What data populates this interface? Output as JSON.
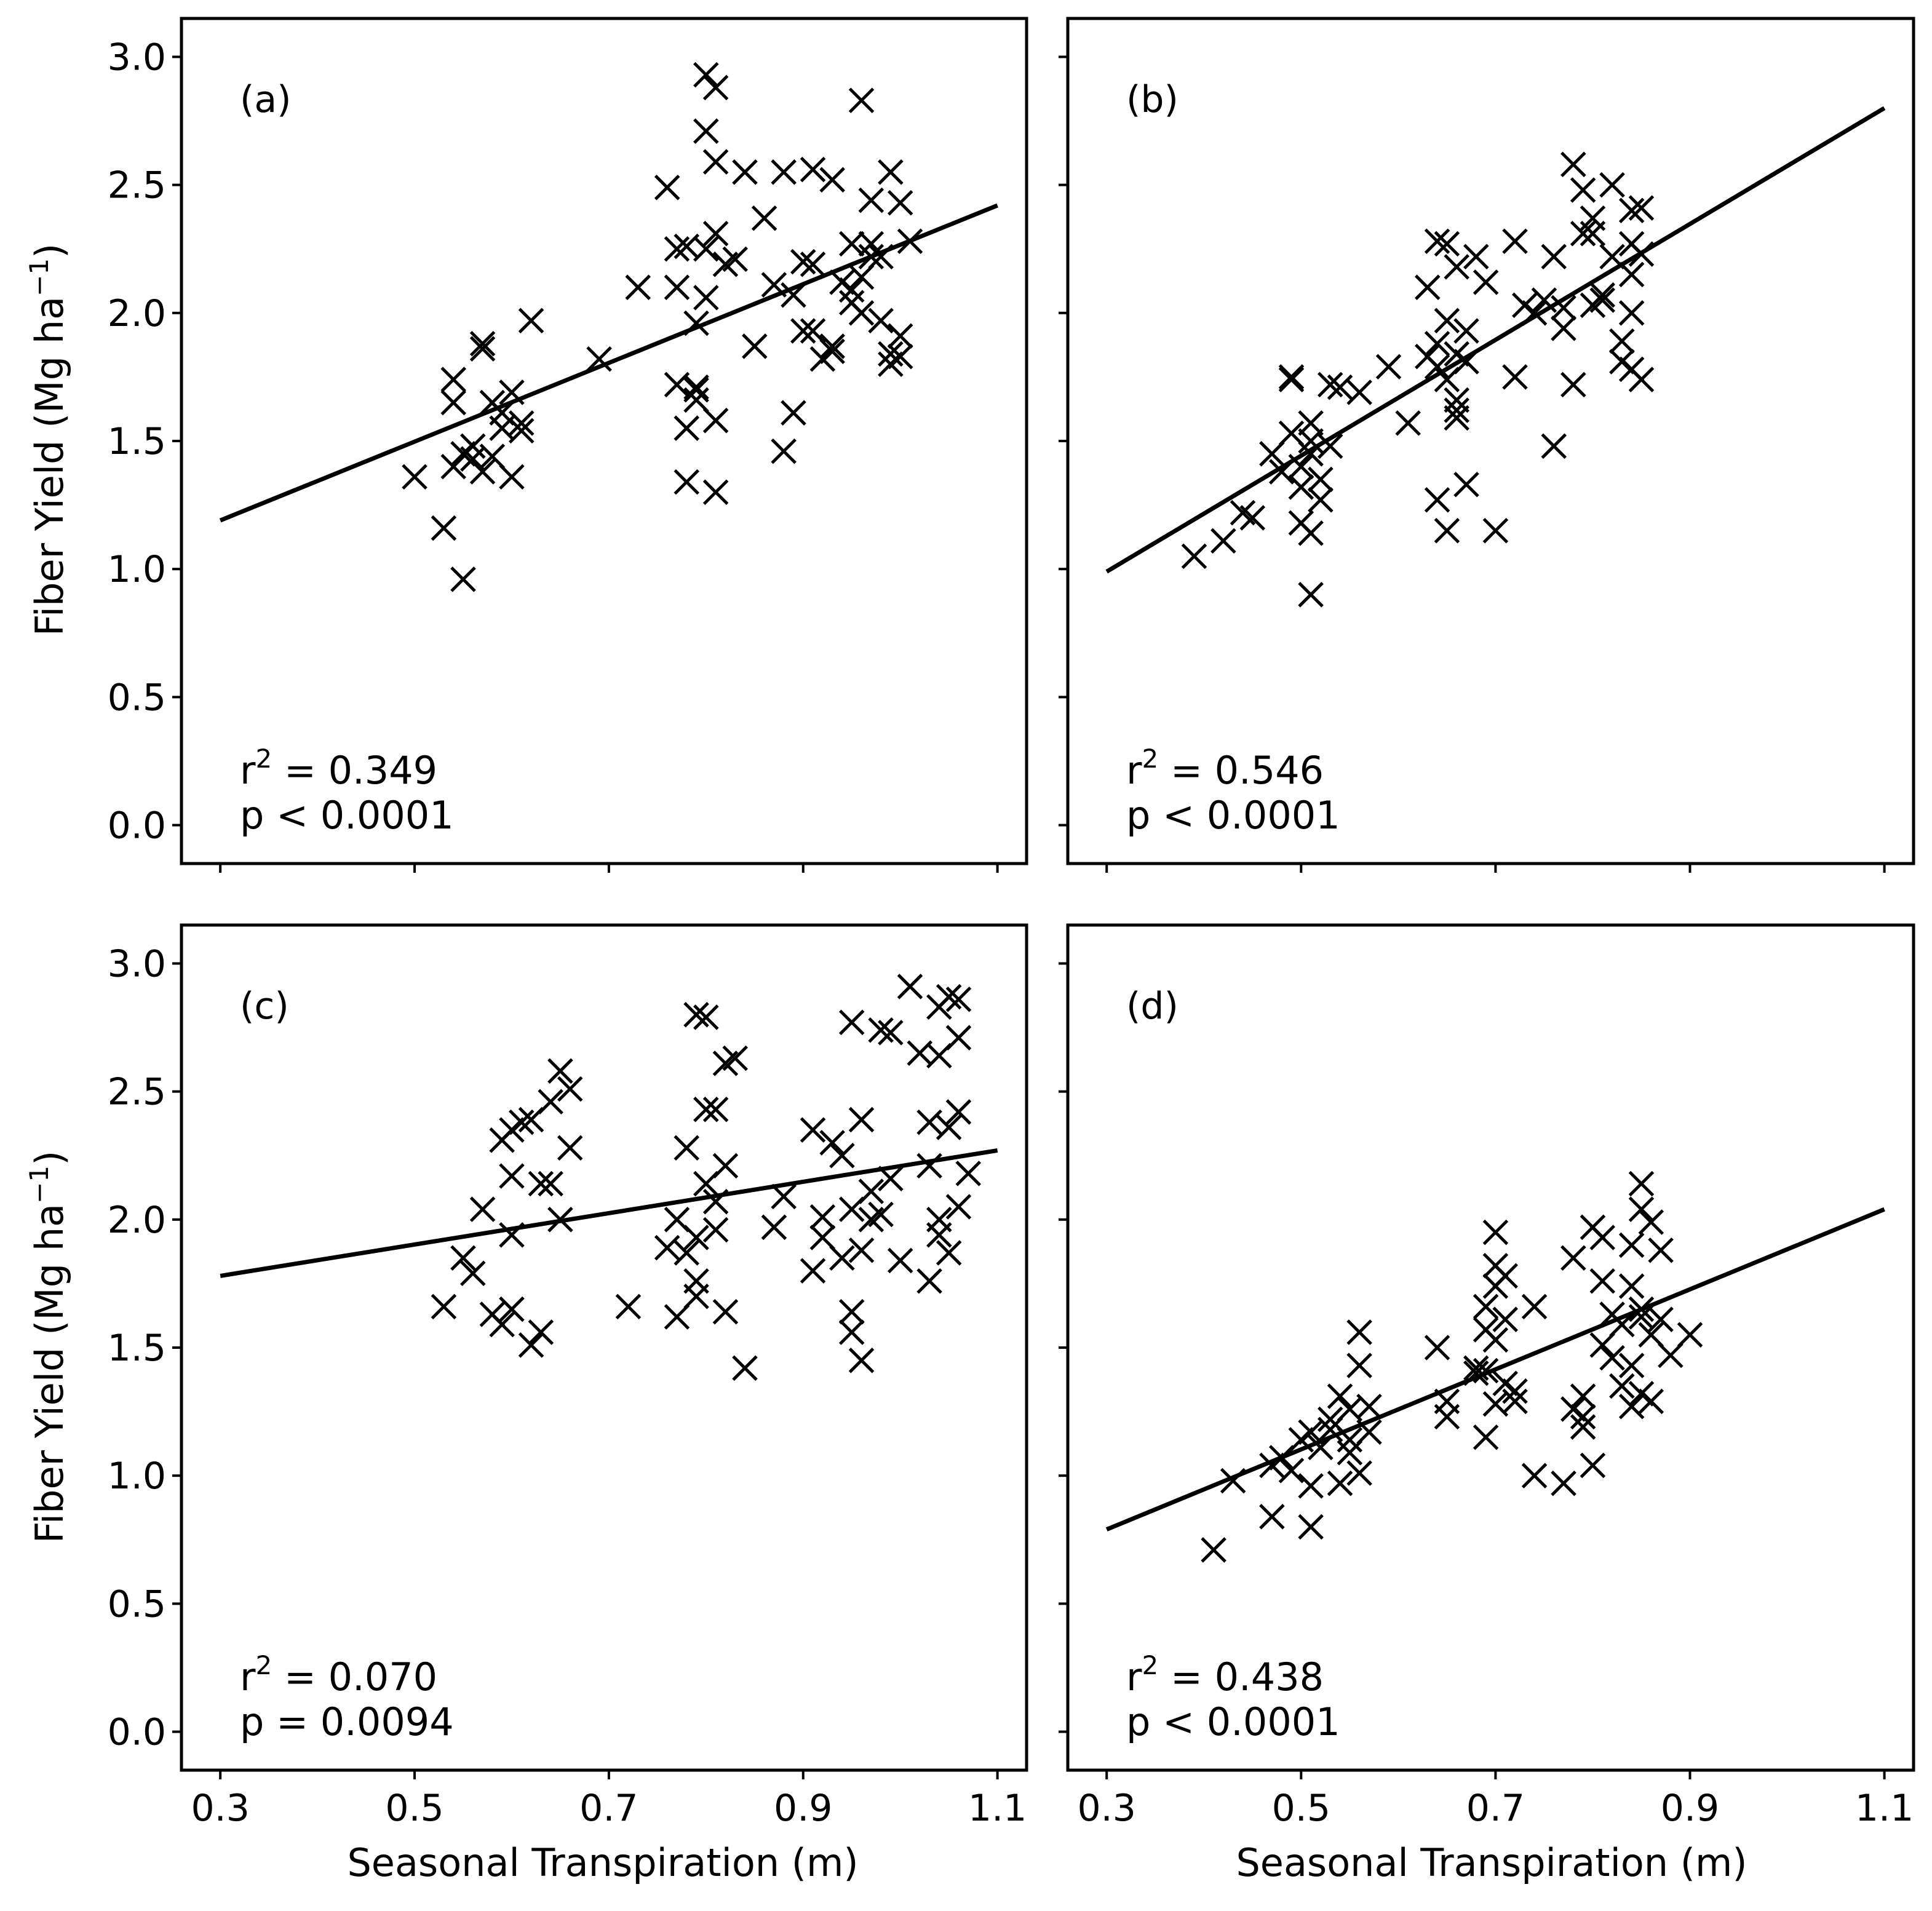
{
  "figure": {
    "ylabel": "Fiber Yield (Mg ha",
    "ylabel_sup": "−1",
    "ylabel_close": ")",
    "xlabel": "Seasonal Transpiration (m)"
  },
  "chart_data": [
    {
      "type": "scatter",
      "panel_label": "(a)",
      "xlabel": "",
      "ylabel": "Fiber Yield (Mg ha−1)",
      "xlim": [
        0.26,
        1.13
      ],
      "ylim": [
        -0.15,
        3.15
      ],
      "xticks": [
        0.3,
        0.5,
        0.7,
        0.9,
        1.1
      ],
      "xtick_labels": [],
      "yticks": [
        0.0,
        0.5,
        1.0,
        1.5,
        2.0,
        2.5,
        3.0
      ],
      "ytick_labels": [
        "0.0",
        "0.5",
        "1.0",
        "1.5",
        "2.0",
        "2.5",
        "3.0"
      ],
      "r2_label": "r",
      "r2_sup": "2",
      "r2_value": " = 0.349",
      "p_text": "p < 0.0001",
      "fit": {
        "x": [
          0.3,
          1.1
        ],
        "y": [
          1.19,
          2.42
        ]
      },
      "points": [
        [
          0.5,
          1.36
        ],
        [
          0.53,
          1.16
        ],
        [
          0.55,
          0.96
        ],
        [
          0.54,
          1.4
        ],
        [
          0.54,
          1.65
        ],
        [
          0.54,
          1.74
        ],
        [
          0.55,
          1.45
        ],
        [
          0.56,
          1.43
        ],
        [
          0.56,
          1.48
        ],
        [
          0.57,
          1.38
        ],
        [
          0.57,
          1.88
        ],
        [
          0.57,
          1.86
        ],
        [
          0.58,
          1.44
        ],
        [
          0.58,
          1.65
        ],
        [
          0.59,
          1.61
        ],
        [
          0.59,
          1.55
        ],
        [
          0.6,
          1.36
        ],
        [
          0.6,
          1.69
        ],
        [
          0.61,
          1.57
        ],
        [
          0.61,
          1.54
        ],
        [
          0.62,
          1.97
        ],
        [
          0.69,
          1.82
        ],
        [
          0.73,
          2.1
        ],
        [
          0.76,
          2.49
        ],
        [
          0.77,
          1.72
        ],
        [
          0.77,
          2.1
        ],
        [
          0.77,
          2.25
        ],
        [
          0.78,
          1.55
        ],
        [
          0.78,
          1.34
        ],
        [
          0.78,
          2.26
        ],
        [
          0.79,
          1.7
        ],
        [
          0.79,
          1.96
        ],
        [
          0.79,
          1.66
        ],
        [
          0.79,
          1.71
        ],
        [
          0.8,
          2.25
        ],
        [
          0.8,
          2.06
        ],
        [
          0.8,
          2.93
        ],
        [
          0.8,
          2.71
        ],
        [
          0.81,
          2.88
        ],
        [
          0.81,
          2.59
        ],
        [
          0.81,
          2.31
        ],
        [
          0.81,
          1.58
        ],
        [
          0.81,
          1.3
        ],
        [
          0.82,
          2.19
        ],
        [
          0.83,
          2.21
        ],
        [
          0.84,
          2.55
        ],
        [
          0.85,
          1.87
        ],
        [
          0.86,
          2.37
        ],
        [
          0.87,
          2.11
        ],
        [
          0.88,
          2.55
        ],
        [
          0.88,
          1.46
        ],
        [
          0.89,
          1.61
        ],
        [
          0.89,
          2.07
        ],
        [
          0.9,
          2.2
        ],
        [
          0.9,
          1.93
        ],
        [
          0.91,
          2.56
        ],
        [
          0.91,
          2.19
        ],
        [
          0.91,
          1.93
        ],
        [
          0.92,
          1.82
        ],
        [
          0.93,
          2.52
        ],
        [
          0.93,
          1.87
        ],
        [
          0.93,
          1.85
        ],
        [
          0.94,
          2.12
        ],
        [
          0.95,
          2.09
        ],
        [
          0.95,
          2.04
        ],
        [
          0.95,
          2.27
        ],
        [
          0.96,
          2.0
        ],
        [
          0.96,
          2.83
        ],
        [
          0.96,
          2.14
        ],
        [
          0.97,
          2.27
        ],
        [
          0.97,
          2.44
        ],
        [
          0.97,
          2.22
        ],
        [
          0.98,
          1.97
        ],
        [
          0.98,
          2.22
        ],
        [
          0.99,
          1.84
        ],
        [
          0.99,
          1.8
        ],
        [
          0.99,
          2.55
        ],
        [
          1.0,
          1.91
        ],
        [
          1.0,
          1.83
        ],
        [
          1.0,
          2.43
        ],
        [
          1.01,
          2.28
        ]
      ]
    },
    {
      "type": "scatter",
      "panel_label": "(b)",
      "xlabel": "",
      "ylabel": "",
      "xlim": [
        0.26,
        1.13
      ],
      "ylim": [
        -0.15,
        3.15
      ],
      "xticks": [
        0.3,
        0.5,
        0.7,
        0.9,
        1.1
      ],
      "xtick_labels": [],
      "yticks": [
        0.0,
        0.5,
        1.0,
        1.5,
        2.0,
        2.5,
        3.0
      ],
      "ytick_labels": [],
      "r2_label": "r",
      "r2_sup": "2",
      "r2_value": " = 0.546",
      "p_text": "p < 0.0001",
      "fit": {
        "x": [
          0.3,
          1.1
        ],
        "y": [
          0.99,
          2.8
        ]
      },
      "points": [
        [
          0.39,
          1.05
        ],
        [
          0.42,
          1.11
        ],
        [
          0.44,
          1.22
        ],
        [
          0.45,
          1.2
        ],
        [
          0.47,
          1.45
        ],
        [
          0.48,
          1.38
        ],
        [
          0.49,
          1.75
        ],
        [
          0.49,
          1.53
        ],
        [
          0.49,
          1.74
        ],
        [
          0.5,
          1.32
        ],
        [
          0.5,
          1.4
        ],
        [
          0.5,
          1.18
        ],
        [
          0.51,
          1.14
        ],
        [
          0.51,
          1.45
        ],
        [
          0.51,
          0.9
        ],
        [
          0.51,
          1.5
        ],
        [
          0.51,
          1.57
        ],
        [
          0.52,
          1.27
        ],
        [
          0.52,
          1.35
        ],
        [
          0.53,
          1.48
        ],
        [
          0.53,
          1.72
        ],
        [
          0.54,
          1.71
        ],
        [
          0.56,
          1.69
        ],
        [
          0.59,
          1.79
        ],
        [
          0.61,
          1.57
        ],
        [
          0.63,
          2.1
        ],
        [
          0.63,
          1.83
        ],
        [
          0.64,
          1.88
        ],
        [
          0.64,
          2.28
        ],
        [
          0.64,
          1.79
        ],
        [
          0.64,
          1.27
        ],
        [
          0.65,
          1.74
        ],
        [
          0.65,
          1.97
        ],
        [
          0.65,
          2.27
        ],
        [
          0.65,
          1.15
        ],
        [
          0.66,
          1.59
        ],
        [
          0.66,
          1.66
        ],
        [
          0.66,
          1.62
        ],
        [
          0.66,
          1.84
        ],
        [
          0.66,
          2.18
        ],
        [
          0.67,
          1.33
        ],
        [
          0.67,
          1.93
        ],
        [
          0.67,
          1.81
        ],
        [
          0.68,
          2.22
        ],
        [
          0.69,
          2.12
        ],
        [
          0.7,
          1.15
        ],
        [
          0.72,
          2.28
        ],
        [
          0.72,
          1.75
        ],
        [
          0.73,
          2.03
        ],
        [
          0.74,
          2.0
        ],
        [
          0.75,
          2.05
        ],
        [
          0.76,
          1.48
        ],
        [
          0.76,
          2.22
        ],
        [
          0.77,
          1.94
        ],
        [
          0.77,
          2.02
        ],
        [
          0.78,
          1.72
        ],
        [
          0.78,
          2.58
        ],
        [
          0.79,
          2.48
        ],
        [
          0.79,
          2.31
        ],
        [
          0.8,
          2.31
        ],
        [
          0.8,
          2.03
        ],
        [
          0.8,
          2.37
        ],
        [
          0.81,
          2.05
        ],
        [
          0.81,
          2.07
        ],
        [
          0.82,
          2.5
        ],
        [
          0.82,
          2.22
        ],
        [
          0.83,
          1.89
        ],
        [
          0.83,
          1.81
        ],
        [
          0.84,
          2.27
        ],
        [
          0.84,
          2.4
        ],
        [
          0.84,
          1.78
        ],
        [
          0.84,
          2.15
        ],
        [
          0.84,
          2.0
        ],
        [
          0.85,
          2.23
        ],
        [
          0.85,
          1.74
        ],
        [
          0.85,
          2.41
        ]
      ]
    },
    {
      "type": "scatter",
      "panel_label": "(c)",
      "xlabel": "Seasonal Transpiration (m)",
      "ylabel": "Fiber Yield (Mg ha−1)",
      "xlim": [
        0.26,
        1.13
      ],
      "ylim": [
        -0.15,
        3.15
      ],
      "xticks": [
        0.3,
        0.5,
        0.7,
        0.9,
        1.1
      ],
      "xtick_labels": [
        "0.3",
        "0.5",
        "0.7",
        "0.9",
        "1.1"
      ],
      "yticks": [
        0.0,
        0.5,
        1.0,
        1.5,
        2.0,
        2.5,
        3.0
      ],
      "ytick_labels": [
        "0.0",
        "0.5",
        "1.0",
        "1.5",
        "2.0",
        "2.5",
        "3.0"
      ],
      "r2_label": "r",
      "r2_sup": "2",
      "r2_value": " = 0.070",
      "p_text": "p = 0.0094",
      "fit": {
        "x": [
          0.3,
          1.1
        ],
        "y": [
          1.78,
          2.27
        ]
      },
      "points": [
        [
          0.53,
          1.66
        ],
        [
          0.55,
          1.85
        ],
        [
          0.56,
          1.79
        ],
        [
          0.57,
          2.04
        ],
        [
          0.58,
          1.63
        ],
        [
          0.59,
          1.59
        ],
        [
          0.59,
          2.31
        ],
        [
          0.6,
          2.35
        ],
        [
          0.6,
          2.17
        ],
        [
          0.6,
          1.65
        ],
        [
          0.6,
          1.94
        ],
        [
          0.61,
          2.38
        ],
        [
          0.62,
          2.39
        ],
        [
          0.62,
          1.51
        ],
        [
          0.63,
          1.56
        ],
        [
          0.63,
          2.14
        ],
        [
          0.64,
          2.14
        ],
        [
          0.64,
          2.46
        ],
        [
          0.65,
          2.58
        ],
        [
          0.65,
          2.0
        ],
        [
          0.66,
          2.51
        ],
        [
          0.66,
          2.28
        ],
        [
          0.72,
          1.66
        ],
        [
          0.76,
          1.89
        ],
        [
          0.77,
          1.62
        ],
        [
          0.77,
          2.0
        ],
        [
          0.78,
          1.87
        ],
        [
          0.78,
          2.28
        ],
        [
          0.79,
          2.8
        ],
        [
          0.79,
          1.93
        ],
        [
          0.79,
          1.76
        ],
        [
          0.79,
          1.7
        ],
        [
          0.8,
          2.79
        ],
        [
          0.8,
          2.14
        ],
        [
          0.8,
          2.43
        ],
        [
          0.81,
          2.07
        ],
        [
          0.81,
          2.43
        ],
        [
          0.81,
          1.96
        ],
        [
          0.82,
          1.64
        ],
        [
          0.82,
          2.21
        ],
        [
          0.82,
          2.61
        ],
        [
          0.83,
          2.63
        ],
        [
          0.84,
          1.42
        ],
        [
          0.87,
          1.97
        ],
        [
          0.88,
          2.09
        ],
        [
          0.91,
          2.35
        ],
        [
          0.91,
          1.8
        ],
        [
          0.92,
          1.93
        ],
        [
          0.92,
          2.01
        ],
        [
          0.93,
          2.3
        ],
        [
          0.94,
          1.85
        ],
        [
          0.94,
          2.25
        ],
        [
          0.95,
          2.77
        ],
        [
          0.95,
          2.04
        ],
        [
          0.95,
          1.64
        ],
        [
          0.95,
          1.56
        ],
        [
          0.96,
          1.88
        ],
        [
          0.96,
          2.39
        ],
        [
          0.96,
          1.45
        ],
        [
          0.97,
          2.0
        ],
        [
          0.97,
          2.11
        ],
        [
          0.98,
          2.02
        ],
        [
          0.98,
          2.74
        ],
        [
          0.99,
          2.73
        ],
        [
          0.99,
          2.16
        ],
        [
          1.0,
          1.84
        ],
        [
          1.01,
          2.91
        ],
        [
          1.02,
          2.65
        ],
        [
          1.03,
          1.76
        ],
        [
          1.03,
          2.21
        ],
        [
          1.03,
          2.38
        ],
        [
          1.04,
          2.83
        ],
        [
          1.04,
          2.64
        ],
        [
          1.04,
          2.0
        ],
        [
          1.04,
          1.94
        ],
        [
          1.05,
          1.87
        ],
        [
          1.05,
          2.87
        ],
        [
          1.05,
          2.36
        ],
        [
          1.06,
          2.71
        ],
        [
          1.06,
          2.42
        ],
        [
          1.06,
          2.86
        ],
        [
          1.06,
          2.05
        ],
        [
          1.07,
          2.18
        ]
      ]
    },
    {
      "type": "scatter",
      "panel_label": "(d)",
      "xlabel": "Seasonal Transpiration (m)",
      "ylabel": "",
      "xlim": [
        0.26,
        1.13
      ],
      "ylim": [
        -0.15,
        3.15
      ],
      "xticks": [
        0.3,
        0.5,
        0.7,
        0.9,
        1.1
      ],
      "xtick_labels": [
        "0.3",
        "0.5",
        "0.7",
        "0.9",
        "1.1"
      ],
      "yticks": [
        0.0,
        0.5,
        1.0,
        1.5,
        2.0,
        2.5,
        3.0
      ],
      "ytick_labels": [],
      "r2_label": "r",
      "r2_sup": "2",
      "r2_value": " = 0.438",
      "p_text": "p < 0.0001",
      "fit": {
        "x": [
          0.3,
          1.1
        ],
        "y": [
          0.79,
          2.04
        ]
      },
      "points": [
        [
          0.41,
          0.71
        ],
        [
          0.43,
          0.98
        ],
        [
          0.47,
          0.84
        ],
        [
          0.47,
          1.04
        ],
        [
          0.48,
          1.07
        ],
        [
          0.49,
          1.02
        ],
        [
          0.5,
          1.14
        ],
        [
          0.51,
          0.96
        ],
        [
          0.51,
          0.8
        ],
        [
          0.51,
          1.17
        ],
        [
          0.52,
          1.11
        ],
        [
          0.53,
          1.18
        ],
        [
          0.53,
          1.22
        ],
        [
          0.54,
          1.31
        ],
        [
          0.54,
          0.97
        ],
        [
          0.55,
          1.09
        ],
        [
          0.55,
          1.26
        ],
        [
          0.55,
          1.14
        ],
        [
          0.56,
          1.43
        ],
        [
          0.56,
          1.56
        ],
        [
          0.56,
          1.01
        ],
        [
          0.57,
          1.17
        ],
        [
          0.57,
          1.27
        ],
        [
          0.64,
          1.5
        ],
        [
          0.65,
          1.23
        ],
        [
          0.65,
          1.29
        ],
        [
          0.68,
          1.4
        ],
        [
          0.68,
          1.42
        ],
        [
          0.69,
          1.57
        ],
        [
          0.69,
          1.66
        ],
        [
          0.69,
          1.15
        ],
        [
          0.69,
          1.41
        ],
        [
          0.7,
          1.28
        ],
        [
          0.7,
          1.74
        ],
        [
          0.7,
          1.53
        ],
        [
          0.7,
          1.82
        ],
        [
          0.7,
          1.95
        ],
        [
          0.71,
          1.78
        ],
        [
          0.71,
          1.61
        ],
        [
          0.71,
          1.36
        ],
        [
          0.72,
          1.29
        ],
        [
          0.72,
          1.33
        ],
        [
          0.74,
          1.66
        ],
        [
          0.74,
          1.0
        ],
        [
          0.77,
          0.97
        ],
        [
          0.78,
          1.26
        ],
        [
          0.78,
          1.85
        ],
        [
          0.79,
          1.23
        ],
        [
          0.79,
          1.31
        ],
        [
          0.79,
          1.19
        ],
        [
          0.8,
          1.97
        ],
        [
          0.8,
          1.04
        ],
        [
          0.81,
          1.76
        ],
        [
          0.81,
          1.51
        ],
        [
          0.81,
          1.93
        ],
        [
          0.82,
          1.63
        ],
        [
          0.82,
          1.46
        ],
        [
          0.83,
          1.59
        ],
        [
          0.83,
          1.35
        ],
        [
          0.84,
          1.74
        ],
        [
          0.84,
          1.43
        ],
        [
          0.84,
          1.27
        ],
        [
          0.84,
          1.9
        ],
        [
          0.85,
          1.62
        ],
        [
          0.85,
          1.32
        ],
        [
          0.85,
          1.65
        ],
        [
          0.85,
          2.14
        ],
        [
          0.85,
          2.04
        ],
        [
          0.86,
          1.99
        ],
        [
          0.86,
          1.55
        ],
        [
          0.86,
          1.29
        ],
        [
          0.87,
          1.88
        ],
        [
          0.87,
          1.61
        ],
        [
          0.88,
          1.47
        ],
        [
          0.9,
          1.55
        ]
      ]
    }
  ]
}
